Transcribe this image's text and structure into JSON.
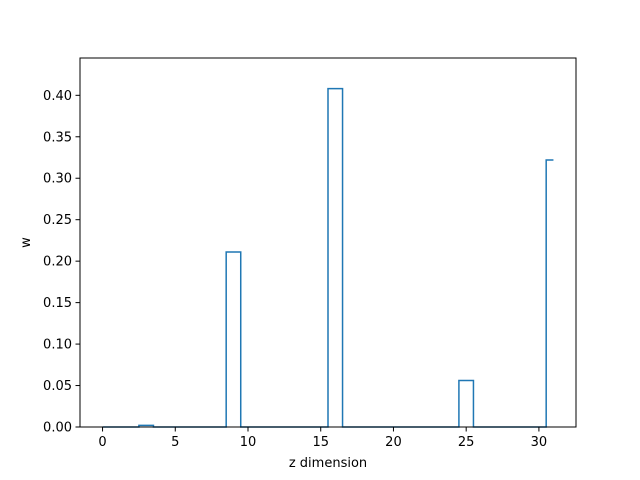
{
  "chart_data": {
    "type": "line",
    "drawstyle": "steps-mid",
    "title": "",
    "xlabel": "z dimension",
    "ylabel": "w",
    "xlim": [
      -1.55,
      32.55
    ],
    "ylim": [
      0.0,
      0.445
    ],
    "xticks": [
      0,
      5,
      10,
      15,
      20,
      25,
      30
    ],
    "yticks": [
      0.0,
      0.05,
      0.1,
      0.15,
      0.2,
      0.25,
      0.3,
      0.35,
      0.4
    ],
    "ytick_labels": [
      "0.00",
      "0.05",
      "0.10",
      "0.15",
      "0.20",
      "0.25",
      "0.30",
      "0.35",
      "0.40"
    ],
    "grid": false,
    "series": [
      {
        "color": "#1f77b4",
        "x": [
          0,
          1,
          2,
          3,
          4,
          5,
          6,
          7,
          8,
          9,
          10,
          11,
          12,
          13,
          14,
          15,
          16,
          17,
          18,
          19,
          20,
          21,
          22,
          23,
          24,
          25,
          26,
          27,
          28,
          29,
          30,
          31
        ],
        "y": [
          0,
          0,
          0,
          0.002,
          0,
          0,
          0,
          0,
          0,
          0.211,
          0,
          0,
          0,
          0,
          0,
          0,
          0.408,
          0,
          0,
          0,
          0,
          0,
          0,
          0,
          0,
          0.056,
          0,
          0,
          0,
          0,
          0,
          0.322
        ]
      }
    ]
  }
}
